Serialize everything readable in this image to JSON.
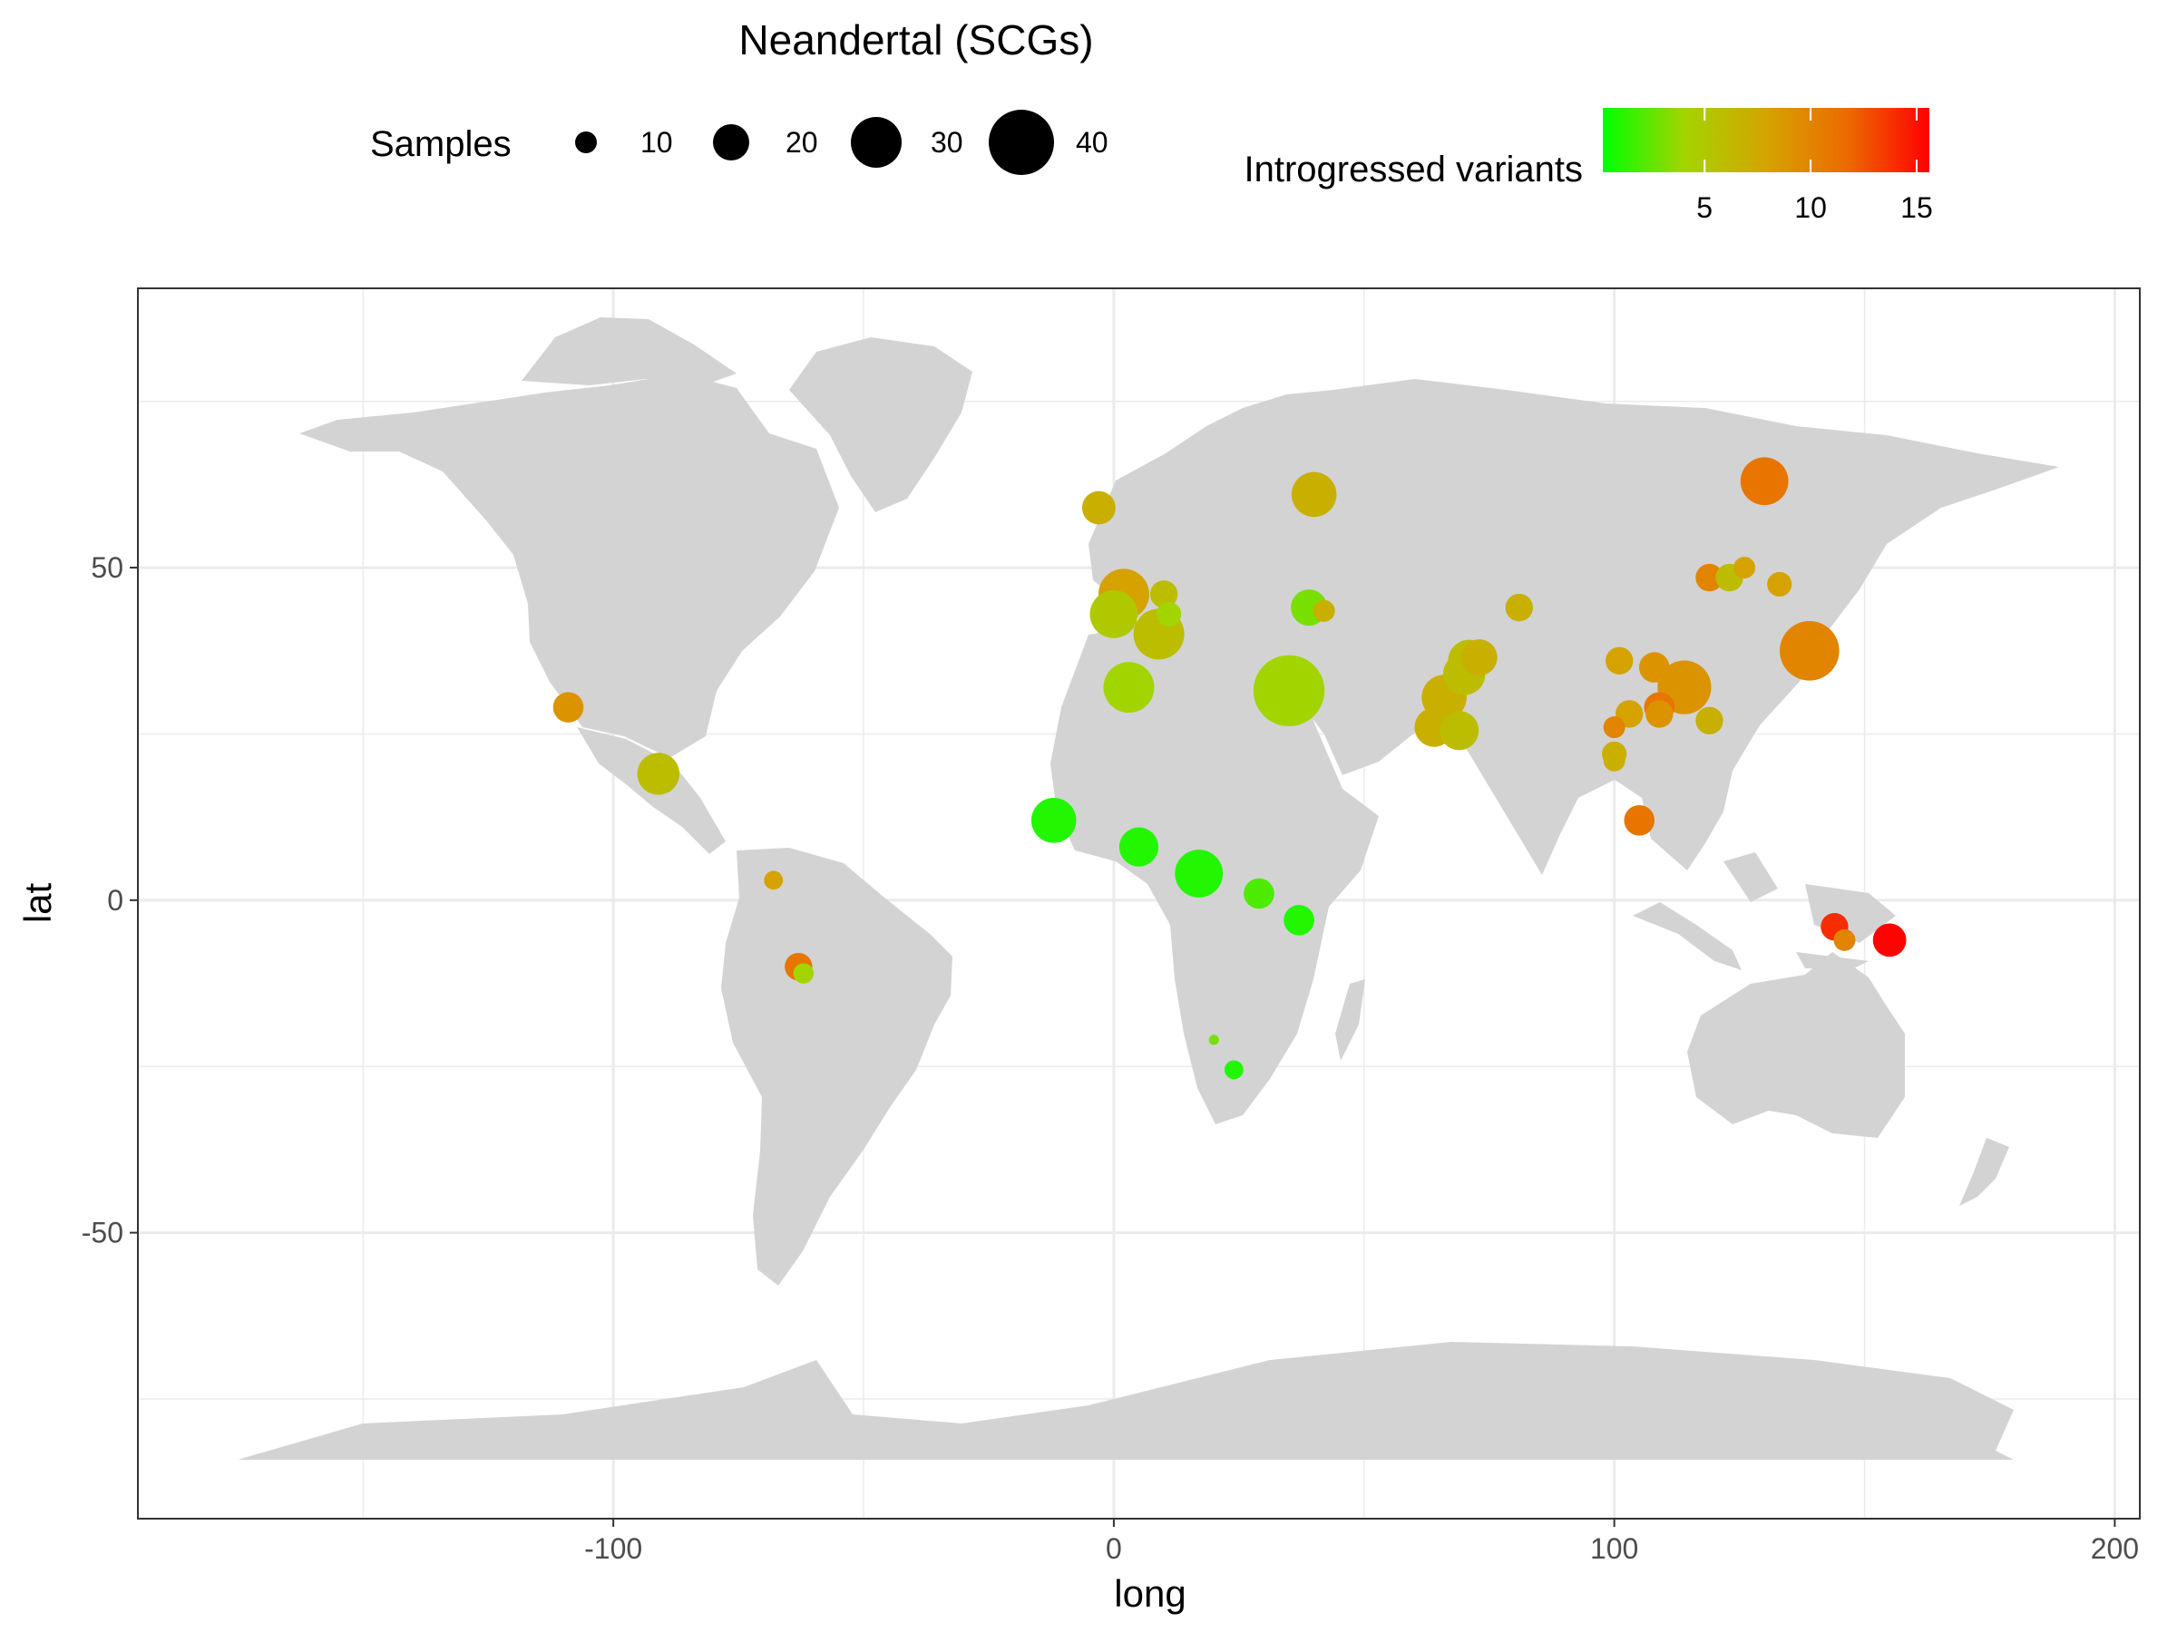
{
  "chart_data": {
    "type": "scatter",
    "title": "Neandertal (SCGs)",
    "xlabel": "long",
    "ylabel": "lat",
    "xlim": [
      -195,
      205
    ],
    "ylim": [
      -93,
      92
    ],
    "x_ticks": [
      -100,
      0,
      100,
      200
    ],
    "x_tick_labels": [
      "-100",
      "0",
      "100",
      "200"
    ],
    "y_ticks": [
      -50,
      0,
      50
    ],
    "y_tick_labels": [
      "-50",
      "0",
      "50"
    ],
    "grid": true,
    "background_map": "world land masses",
    "size_legend": {
      "title": "Samples",
      "values": [
        10,
        20,
        30,
        40
      ],
      "labels": [
        "10",
        "20",
        "30",
        "40"
      ]
    },
    "color_legend": {
      "title": "Introgressed variants",
      "range": [
        0.2,
        15.6
      ],
      "ticks": [
        5,
        10,
        15
      ],
      "tick_labels": [
        "5",
        "10",
        "15"
      ],
      "colors": [
        "#00ff00",
        "#a4d400",
        "#d4a400",
        "#ec6a00",
        "#ff0000"
      ]
    },
    "legend_position": "top",
    "points": [
      {
        "x": -109,
        "y": 29,
        "size": 16,
        "color_value": 9
      },
      {
        "x": -91,
        "y": 19,
        "size": 24,
        "color_value": 6
      },
      {
        "x": -68,
        "y": 3,
        "size": 8,
        "color_value": 8
      },
      {
        "x": -63,
        "y": -10,
        "size": 14,
        "color_value": 11
      },
      {
        "x": -62,
        "y": -11,
        "size": 9,
        "color_value": 4
      },
      {
        "x": -3,
        "y": 59,
        "size": 18,
        "color_value": 7
      },
      {
        "x": 0,
        "y": 43,
        "size": 28,
        "color_value": 5
      },
      {
        "x": 2,
        "y": 46,
        "size": 30,
        "color_value": 8
      },
      {
        "x": 10,
        "y": 46,
        "size": 14,
        "color_value": 6
      },
      {
        "x": 11,
        "y": 43,
        "size": 12,
        "color_value": 4
      },
      {
        "x": 9,
        "y": 40,
        "size": 30,
        "color_value": 6
      },
      {
        "x": 3,
        "y": 32,
        "size": 30,
        "color_value": 4
      },
      {
        "x": 35,
        "y": 31.5,
        "size": 44,
        "color_value": 4
      },
      {
        "x": 40,
        "y": 61,
        "size": 26,
        "color_value": 7
      },
      {
        "x": 39,
        "y": 44,
        "size": 20,
        "color_value": 3
      },
      {
        "x": 42,
        "y": 43.5,
        "size": 10,
        "color_value": 7
      },
      {
        "x": 81,
        "y": 44,
        "size": 14,
        "color_value": 7
      },
      {
        "x": 73,
        "y": 36.5,
        "size": 20,
        "color_value": 7
      },
      {
        "x": 71,
        "y": 36,
        "size": 24,
        "color_value": 6
      },
      {
        "x": 70,
        "y": 34,
        "size": 24,
        "color_value": 6
      },
      {
        "x": 66,
        "y": 30.5,
        "size": 26,
        "color_value": 7
      },
      {
        "x": 64,
        "y": 26,
        "size": 22,
        "color_value": 7
      },
      {
        "x": 69,
        "y": 25.5,
        "size": 22,
        "color_value": 6
      },
      {
        "x": -12,
        "y": 12,
        "size": 26,
        "color_value": 1
      },
      {
        "x": 5,
        "y": 8,
        "size": 22,
        "color_value": 1
      },
      {
        "x": 17,
        "y": 4,
        "size": 28,
        "color_value": 1
      },
      {
        "x": 29,
        "y": 1,
        "size": 16,
        "color_value": 2
      },
      {
        "x": 37,
        "y": -3,
        "size": 16,
        "color_value": 1
      },
      {
        "x": 20,
        "y": -21,
        "size": 2,
        "color_value": 3
      },
      {
        "x": 24,
        "y": -25.5,
        "size": 8,
        "color_value": 1
      },
      {
        "x": 101,
        "y": 36,
        "size": 14,
        "color_value": 8
      },
      {
        "x": 108,
        "y": 35,
        "size": 16,
        "color_value": 9
      },
      {
        "x": 114,
        "y": 32,
        "size": 32,
        "color_value": 9
      },
      {
        "x": 103,
        "y": 28,
        "size": 14,
        "color_value": 8
      },
      {
        "x": 109,
        "y": 29,
        "size": 16,
        "color_value": 11
      },
      {
        "x": 109,
        "y": 28,
        "size": 14,
        "color_value": 9
      },
      {
        "x": 100,
        "y": 26,
        "size": 10,
        "color_value": 10
      },
      {
        "x": 100,
        "y": 22,
        "size": 12,
        "color_value": 7
      },
      {
        "x": 100,
        "y": 21,
        "size": 10,
        "color_value": 7
      },
      {
        "x": 119,
        "y": 27,
        "size": 14,
        "color_value": 7
      },
      {
        "x": 105,
        "y": 12,
        "size": 16,
        "color_value": 11
      },
      {
        "x": 119,
        "y": 48.5,
        "size": 14,
        "color_value": 10
      },
      {
        "x": 123,
        "y": 48.5,
        "size": 14,
        "color_value": 6
      },
      {
        "x": 126,
        "y": 50,
        "size": 10,
        "color_value": 8
      },
      {
        "x": 133,
        "y": 47.5,
        "size": 12,
        "color_value": 8
      },
      {
        "x": 130,
        "y": 63,
        "size": 28,
        "color_value": 11
      },
      {
        "x": 139,
        "y": 37.5,
        "size": 36,
        "color_value": 10
      },
      {
        "x": 144,
        "y": -4,
        "size": 14,
        "color_value": 14
      },
      {
        "x": 146,
        "y": -6,
        "size": 10,
        "color_value": 10
      },
      {
        "x": 155,
        "y": -6,
        "size": 18,
        "color_value": 15.5
      }
    ]
  }
}
